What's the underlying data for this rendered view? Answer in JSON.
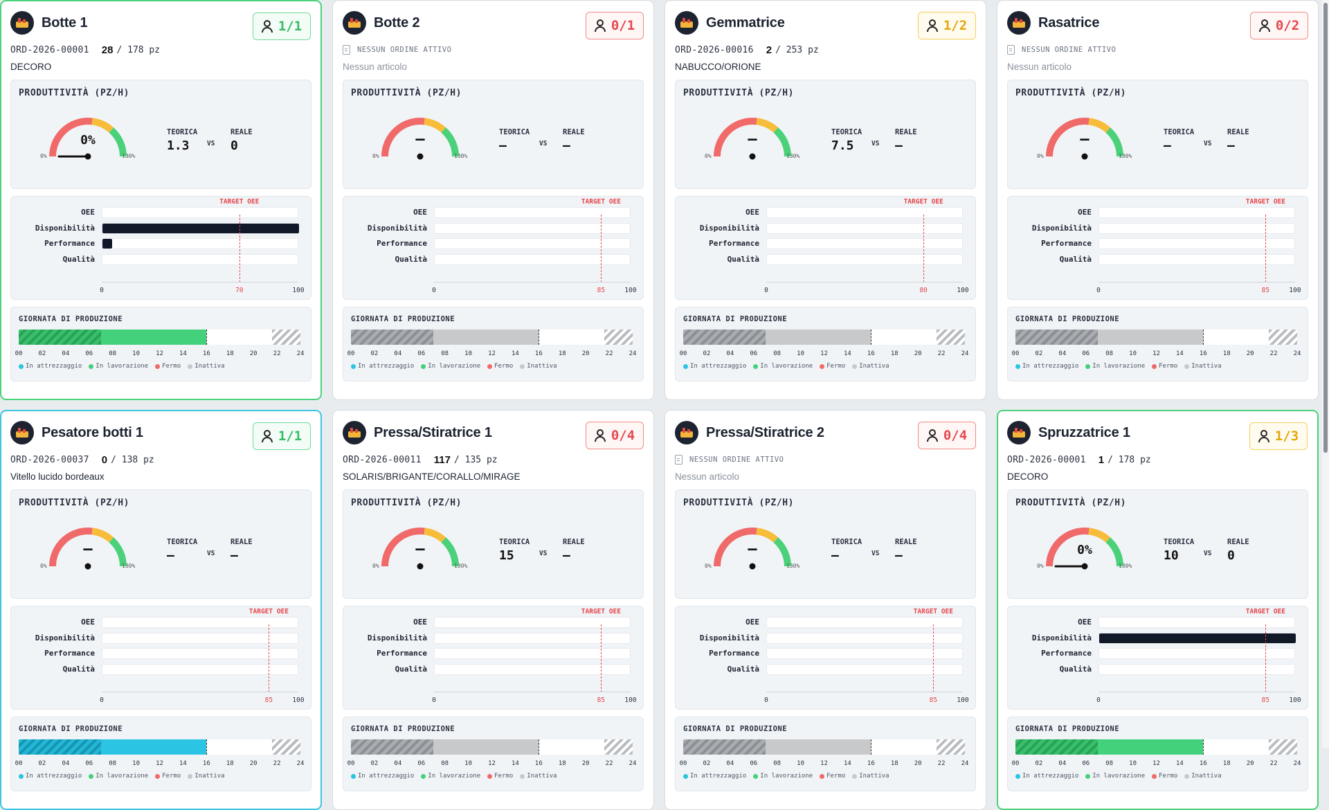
{
  "legend": {
    "setup": "In attrezzaggio",
    "work": "In lavorazione",
    "stop": "Fermo",
    "inactive": "Inattiva"
  },
  "labels": {
    "productivity": "PRODUTTIVITÀ (PZ/H)",
    "theoretical": "TEORICA",
    "vs": "VS",
    "real": "REALE",
    "target_oee": "TARGET OEE",
    "production_day": "GIORNATA DI PRODUZIONE",
    "no_order": "NESSUN ORDINE ATTIVO",
    "no_article": "Nessun articolo",
    "gauge_min": "0%",
    "gauge_max": "130%",
    "qty_unit": "pz",
    "oee_rows": [
      "OEE",
      "Disponibilità",
      "Performance",
      "Qualità"
    ],
    "axis_min": "0",
    "axis_max": "100",
    "hours": [
      "00",
      "02",
      "04",
      "06",
      "08",
      "10",
      "12",
      "14",
      "16",
      "18",
      "20",
      "22",
      "24"
    ]
  },
  "colors": {
    "setup": "#2bc4e2",
    "work": "#44d17c",
    "stop": "#f06a6a",
    "inactive": "#c8c9cb",
    "target": "#e5484d"
  },
  "machines": [
    {
      "name": "Botte 1",
      "status": "working",
      "logo_icon": "factory-icon",
      "operators": "1/1",
      "operators_status": "green",
      "order_code": "ORD-2026-00001",
      "qty_done": "28",
      "qty_total": "178",
      "article": "DECORO",
      "gauge_value": "0%",
      "gauge_level": 0,
      "theoretical": "1.3",
      "real": "0",
      "oee": {
        "OEE": 0,
        "Disponibilità": 100,
        "Performance": 5,
        "Qualità": 0
      },
      "target_oee": 70,
      "target_oee_label": "70",
      "day": {
        "setup_end_h": 7,
        "work_end_h": 16,
        "mode": "green"
      }
    },
    {
      "name": "Botte 2",
      "status": "inactive",
      "logo_icon": "factory-icon",
      "operators": "0/1",
      "operators_status": "red",
      "order_code": "",
      "qty_done": "",
      "qty_total": "",
      "article": "",
      "gauge_value": "–",
      "gauge_level": null,
      "theoretical": "–",
      "real": "–",
      "oee": {
        "OEE": 0,
        "Disponibilità": 0,
        "Performance": 0,
        "Qualità": 0
      },
      "target_oee": 85,
      "target_oee_label": "85",
      "day": {
        "setup_end_h": 7,
        "work_end_h": 16,
        "mode": "gray"
      }
    },
    {
      "name": "Gemmatrice",
      "status": "inactive",
      "logo_icon": "factory-icon",
      "operators": "1/2",
      "operators_status": "yellow",
      "order_code": "ORD-2026-00016",
      "qty_done": "2",
      "qty_total": "253",
      "article": "NABUCCO/ORIONE",
      "gauge_value": "–",
      "gauge_level": null,
      "theoretical": "7.5",
      "real": "–",
      "oee": {
        "OEE": 0,
        "Disponibilità": 0,
        "Performance": 0,
        "Qualità": 0
      },
      "target_oee": 80,
      "target_oee_label": "80",
      "day": {
        "setup_end_h": 7,
        "work_end_h": 16,
        "mode": "gray"
      }
    },
    {
      "name": "Rasatrice",
      "status": "inactive",
      "logo_icon": "factory-icon",
      "operators": "0/2",
      "operators_status": "red",
      "order_code": "",
      "qty_done": "",
      "qty_total": "",
      "article": "",
      "gauge_value": "–",
      "gauge_level": null,
      "theoretical": "–",
      "real": "–",
      "oee": {
        "OEE": 0,
        "Disponibilità": 0,
        "Performance": 0,
        "Qualità": 0
      },
      "target_oee": 85,
      "target_oee_label": "85",
      "day": {
        "setup_end_h": 7,
        "work_end_h": 16,
        "mode": "gray"
      }
    },
    {
      "name": "Pesatore botti 1",
      "status": "setup",
      "logo_icon": "factory-icon",
      "operators": "1/1",
      "operators_status": "green",
      "order_code": "ORD-2026-00037",
      "qty_done": "0",
      "qty_total": "138",
      "article": "Vitello lucido bordeaux",
      "gauge_value": "–",
      "gauge_level": null,
      "theoretical": "–",
      "real": "–",
      "oee": {
        "OEE": 0,
        "Disponibilità": 0,
        "Performance": 0,
        "Qualità": 0
      },
      "target_oee": 85,
      "target_oee_label": "85",
      "day": {
        "setup_end_h": 7,
        "work_end_h": 16,
        "mode": "cyan"
      }
    },
    {
      "name": "Pressa/Stiratrice 1",
      "status": "inactive",
      "logo_icon": "factory-icon",
      "operators": "0/4",
      "operators_status": "red",
      "order_code": "ORD-2026-00011",
      "qty_done": "117",
      "qty_total": "135",
      "article": "SOLARIS/BRIGANTE/CORALLO/MIRAGE",
      "gauge_value": "–",
      "gauge_level": null,
      "theoretical": "15",
      "real": "–",
      "oee": {
        "OEE": 0,
        "Disponibilità": 0,
        "Performance": 0,
        "Qualità": 0
      },
      "target_oee": 85,
      "target_oee_label": "85",
      "day": {
        "setup_end_h": 7,
        "work_end_h": 16,
        "mode": "gray"
      }
    },
    {
      "name": "Pressa/Stiratrice 2",
      "status": "inactive",
      "logo_icon": "factory-icon",
      "operators": "0/4",
      "operators_status": "red",
      "order_code": "",
      "qty_done": "",
      "qty_total": "",
      "article": "",
      "gauge_value": "–",
      "gauge_level": null,
      "theoretical": "–",
      "real": "–",
      "oee": {
        "OEE": 0,
        "Disponibilità": 0,
        "Performance": 0,
        "Qualità": 0
      },
      "target_oee": 85,
      "target_oee_label": "85",
      "day": {
        "setup_end_h": 7,
        "work_end_h": 16,
        "mode": "gray"
      }
    },
    {
      "name": "Spruzzatrice 1",
      "status": "working",
      "logo_icon": "factory-icon",
      "operators": "1/3",
      "operators_status": "yellow",
      "order_code": "ORD-2026-00001",
      "qty_done": "1",
      "qty_total": "178",
      "article": "DECORO",
      "gauge_value": "0%",
      "gauge_level": 0,
      "theoretical": "10",
      "real": "0",
      "oee": {
        "OEE": 0,
        "Disponibilità": 100,
        "Performance": 0,
        "Qualità": 0
      },
      "target_oee": 85,
      "target_oee_label": "85",
      "day": {
        "setup_end_h": 7,
        "work_end_h": 16,
        "mode": "green"
      }
    }
  ]
}
